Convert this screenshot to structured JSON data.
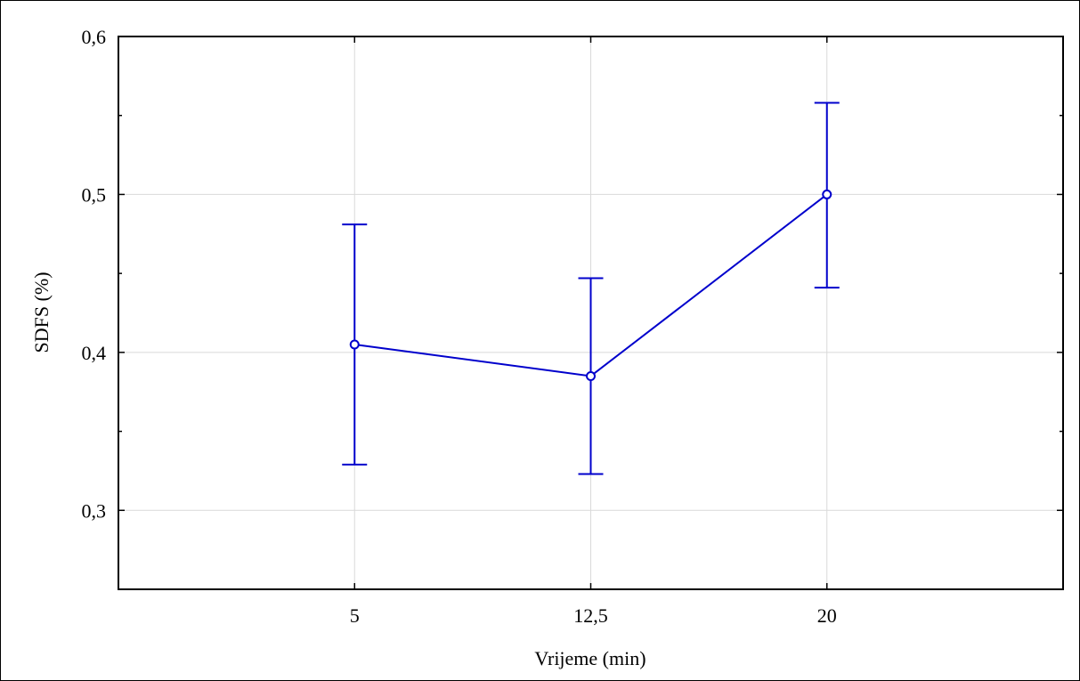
{
  "chart_data": {
    "type": "line",
    "title": "",
    "xlabel": "Vrijeme (min)",
    "ylabel": "SDFS (%)",
    "x": [
      5,
      12.5,
      20
    ],
    "x_tick_labels": [
      "5",
      "12,5",
      "20"
    ],
    "xlim": [
      -2.5,
      27.5
    ],
    "ylim": [
      0.25,
      0.6
    ],
    "y_ticks": [
      0.3,
      0.4,
      0.5,
      0.6
    ],
    "y_tick_labels": [
      "0,3",
      "0,4",
      "0,5",
      "0,6"
    ],
    "y_minor_ticks": [
      0.35,
      0.45,
      0.55
    ],
    "grid": true,
    "series": [
      {
        "values": [
          0.405,
          0.385,
          0.5
        ],
        "error_low": [
          0.329,
          0.323,
          0.441
        ],
        "error_high": [
          0.481,
          0.447,
          0.558
        ],
        "color": "#0000cc",
        "marker": "circle-open"
      }
    ],
    "colors": {
      "line": "#0000cc",
      "grid": "#d9d9d9",
      "axis": "#000000"
    }
  }
}
